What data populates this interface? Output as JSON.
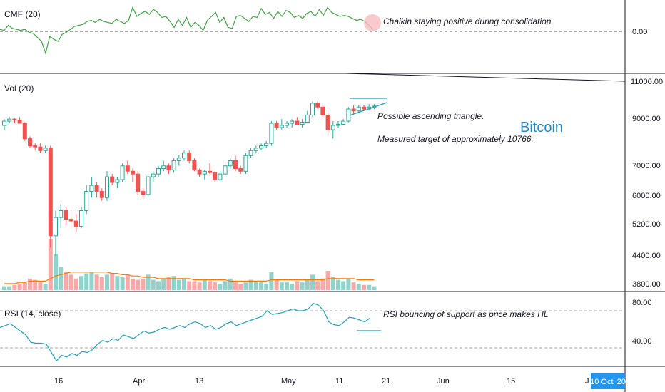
{
  "chart_data": [
    {
      "type": "line",
      "panel": "cmf",
      "label": "CMF (20)",
      "y_ticks": [
        "0.00"
      ],
      "line_color": "#43a047",
      "values": [
        0.02,
        0.01,
        0.06,
        0.03,
        0.02,
        0.01,
        0.02,
        -0.01,
        -0.02,
        -0.06,
        -0.1,
        -0.22,
        -0.05,
        -0.08,
        -0.1,
        -0.03,
        -0.01,
        0.02,
        0.05,
        0.06,
        0.07,
        0.1,
        0.11,
        0.09,
        0.12,
        0.1,
        0.09,
        0.08,
        0.12,
        0.1,
        0.08,
        0.11,
        0.24,
        0.15,
        0.18,
        0.2,
        0.17,
        0.22,
        0.19,
        0.14,
        0.15,
        0.1,
        0.04,
        0.12,
        0.06,
        0.14,
        0.04,
        0.09,
        0.06,
        0.01,
        0.11,
        0.15,
        0.19,
        0.09,
        0.14,
        0.04,
        0.03,
        0.15,
        0.16,
        0.13,
        0.1,
        0.15,
        0.14,
        0.23,
        0.17,
        0.19,
        0.13,
        0.2,
        0.15,
        0.21,
        0.19,
        0.14,
        0.16,
        0.13,
        0.18,
        0.2,
        0.15,
        0.22,
        0.16,
        0.24,
        0.19,
        0.17,
        0.15,
        0.16,
        0.15,
        0.13,
        0.11,
        0.12,
        0.1,
        0.06,
        0.02
      ],
      "annotation": "Chaikin staying positive during consolidation."
    },
    {
      "type": "candlestick",
      "panel": "price",
      "label": "Vol (20)",
      "symbol": "Bitcoin",
      "y_ticks": [
        "11000.00",
        "9000.00",
        "7000.00",
        "6000.00",
        "5200.00",
        "4400.00",
        "3800.00"
      ],
      "up_color": "#26a69a",
      "down_color": "#ef5350",
      "ohlc": [
        [
          8800,
          9100,
          8600,
          9000
        ],
        [
          9000,
          9200,
          8900,
          9100
        ],
        [
          9100,
          9150,
          8900,
          9050
        ],
        [
          9050,
          9200,
          8950,
          8900
        ],
        [
          8900,
          8950,
          8100,
          8200
        ],
        [
          8200,
          8300,
          7800,
          7900
        ],
        [
          7900,
          8000,
          7700,
          7850
        ],
        [
          7850,
          8000,
          7600,
          7700
        ],
        [
          7700,
          7900,
          7600,
          7800
        ],
        [
          7800,
          7900,
          4600,
          4900
        ],
        [
          4900,
          5600,
          4400,
          5400
        ],
        [
          5400,
          5800,
          5100,
          5600
        ],
        [
          5600,
          5700,
          5200,
          5350
        ],
        [
          5350,
          5600,
          5100,
          5300
        ],
        [
          5300,
          5500,
          5000,
          5150
        ],
        [
          5150,
          5700,
          5100,
          5600
        ],
        [
          5600,
          6400,
          5500,
          6200
        ],
        [
          6200,
          6700,
          6000,
          6400
        ],
        [
          6400,
          6500,
          6000,
          6200
        ],
        [
          6200,
          6300,
          5900,
          6000
        ],
        [
          6000,
          6900,
          5900,
          6700
        ],
        [
          6700,
          6800,
          6400,
          6500
        ],
        [
          6500,
          6700,
          6300,
          6600
        ],
        [
          6600,
          7200,
          6500,
          7100
        ],
        [
          7100,
          7300,
          6800,
          6900
        ],
        [
          6900,
          7000,
          6500,
          6800
        ],
        [
          6800,
          6900,
          6100,
          6200
        ],
        [
          6200,
          6300,
          6000,
          6100
        ],
        [
          6100,
          6800,
          6000,
          6700
        ],
        [
          6700,
          6900,
          6500,
          6800
        ],
        [
          6800,
          7100,
          6700,
          7000
        ],
        [
          7000,
          7300,
          6900,
          7100
        ],
        [
          7100,
          7200,
          6800,
          6950
        ],
        [
          6950,
          7400,
          6850,
          7300
        ],
        [
          7300,
          7500,
          7100,
          7400
        ],
        [
          7400,
          7700,
          7300,
          7600
        ],
        [
          7600,
          7700,
          7200,
          7300
        ],
        [
          7300,
          7400,
          6900,
          6950
        ],
        [
          6950,
          7000,
          6700,
          6800
        ],
        [
          6800,
          6950,
          6600,
          6900
        ],
        [
          6900,
          7200,
          6800,
          6850
        ],
        [
          6850,
          6900,
          6500,
          6600
        ],
        [
          6600,
          6900,
          6500,
          6800
        ],
        [
          6800,
          7200,
          6700,
          7100
        ],
        [
          7100,
          7400,
          7000,
          7300
        ],
        [
          7300,
          7500,
          6900,
          7000
        ],
        [
          7000,
          7100,
          6800,
          6900
        ],
        [
          6900,
          7600,
          6800,
          7500
        ],
        [
          7500,
          7800,
          7400,
          7700
        ],
        [
          7700,
          7900,
          7600,
          7800
        ],
        [
          7800,
          8000,
          7700,
          7900
        ],
        [
          7900,
          8100,
          7800,
          8000
        ],
        [
          8000,
          9000,
          7900,
          8900
        ],
        [
          8900,
          9000,
          8600,
          8700
        ],
        [
          8700,
          9100,
          8600,
          8800
        ],
        [
          8800,
          9000,
          8700,
          8900
        ],
        [
          8900,
          9100,
          8700,
          9000
        ],
        [
          9000,
          9200,
          8800,
          8850
        ],
        [
          8850,
          9100,
          8700,
          8950
        ],
        [
          8950,
          9500,
          8900,
          9300
        ],
        [
          9300,
          10000,
          9200,
          9900
        ],
        [
          9900,
          10000,
          9600,
          9700
        ],
        [
          9700,
          9800,
          9200,
          9300
        ],
        [
          9300,
          9400,
          8300,
          8600
        ],
        [
          8600,
          9000,
          8200,
          8800
        ],
        [
          8800,
          9000,
          8700,
          8850
        ],
        [
          8850,
          9100,
          8800,
          9000
        ],
        [
          9000,
          9700,
          8950,
          9600
        ],
        [
          9600,
          9800,
          9300,
          9500
        ],
        [
          9500,
          9800,
          9400,
          9700
        ],
        [
          9700,
          9800,
          9500,
          9600
        ],
        [
          9600,
          9850,
          9550,
          9700
        ],
        [
          9700,
          9850,
          9600,
          9750
        ]
      ],
      "volume": [
        3,
        3,
        4,
        5,
        6,
        9,
        8,
        6,
        5,
        40,
        28,
        18,
        14,
        12,
        9,
        11,
        13,
        14,
        12,
        10,
        12,
        13,
        11,
        10,
        12,
        9,
        8,
        9,
        12,
        8,
        7,
        9,
        10,
        11,
        8,
        9,
        7,
        7,
        6,
        8,
        7,
        6,
        5,
        7,
        9,
        6,
        5,
        6,
        8,
        7,
        6,
        5,
        14,
        8,
        6,
        6,
        5,
        7,
        6,
        8,
        12,
        7,
        9,
        15,
        10,
        8,
        7,
        9,
        6,
        5,
        4,
        4,
        3
      ],
      "volume_ma": [
        5,
        5,
        5,
        6,
        6,
        7,
        7,
        7,
        7,
        9,
        11,
        12,
        13,
        14,
        14,
        14,
        14,
        14,
        14,
        14,
        14,
        13,
        13,
        12,
        12,
        11,
        11,
        10,
        10,
        10,
        9,
        9,
        9,
        9,
        9,
        9,
        9,
        8,
        8,
        8,
        8,
        8,
        8,
        8,
        7,
        7,
        7,
        7,
        7,
        7,
        7,
        7,
        8,
        8,
        8,
        8,
        8,
        8,
        8,
        8,
        8,
        8,
        8,
        9,
        9,
        9,
        9,
        9,
        9,
        8,
        8,
        8,
        8
      ],
      "volume_colors": [
        "#26a69a",
        "#ef5350"
      ],
      "annotations": [
        "Possible ascending triangle.",
        "Measured target of approximately 10766."
      ]
    },
    {
      "type": "line",
      "panel": "rsi",
      "label": "RSI (14, close)",
      "y_ticks": [
        "80.00",
        "40.00"
      ],
      "line_color": "#26a0b4",
      "values": [
        52,
        54,
        56,
        52,
        48,
        44,
        36,
        35,
        35,
        34,
        25,
        16,
        22,
        20,
        24,
        22,
        26,
        25,
        28,
        34,
        38,
        36,
        40,
        38,
        44,
        42,
        40,
        44,
        48,
        46,
        47,
        50,
        52,
        50,
        52,
        54,
        52,
        56,
        58,
        56,
        52,
        54,
        50,
        52,
        56,
        58,
        54,
        56,
        58,
        60,
        62,
        64,
        70,
        66,
        67,
        68,
        70,
        72,
        70,
        70,
        72,
        78,
        76,
        70,
        58,
        55,
        54,
        58,
        63,
        62,
        60,
        58,
        62
      ],
      "hline": 70,
      "hline2": 30,
      "annotation": "RSI bouncing of support as price makes HL"
    }
  ],
  "x_axis": {
    "labels": [
      "16",
      "Apr",
      "13",
      "May",
      "11",
      "21",
      "Jun",
      "15",
      "J"
    ],
    "date_badge": "10 Oct '20"
  },
  "colors": {
    "accent": "#2196f3",
    "up": "#26a69a",
    "down": "#ef5350",
    "cmf": "#43a047",
    "rsi": "#26a0b4",
    "vol_ma": "#f57c00"
  }
}
